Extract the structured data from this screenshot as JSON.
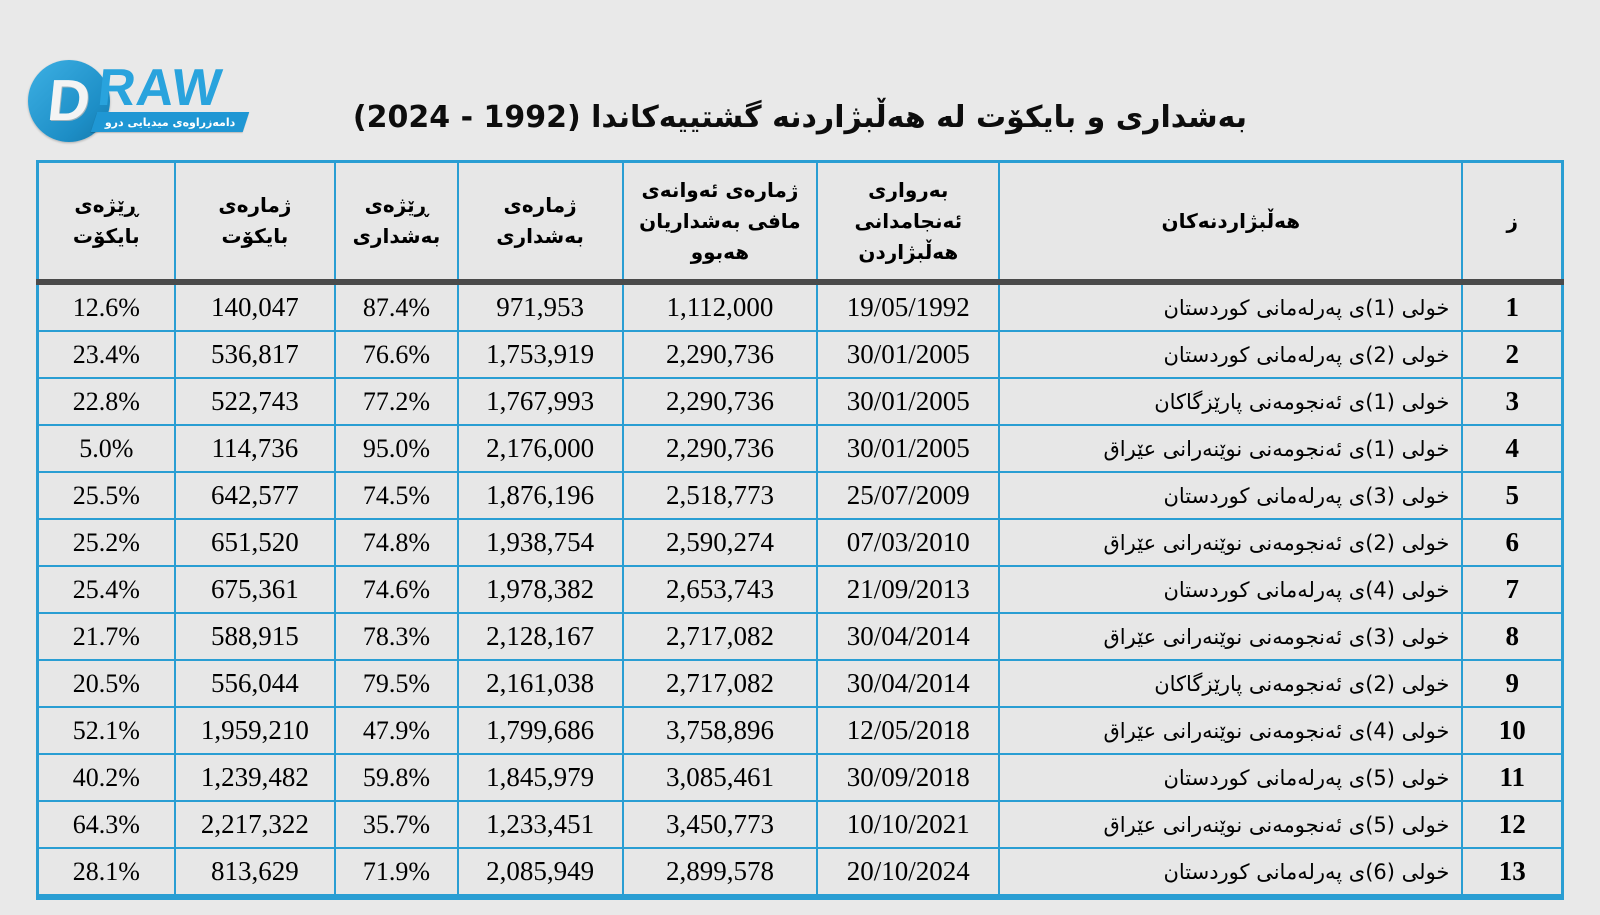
{
  "logo": {
    "brand_d": "D",
    "brand_raw": "RAW",
    "tagline": "دامەزراوەی میدیایی درو",
    "brand_color": "#29a3dd"
  },
  "title": "بەشداری و بایکۆت لە هەڵبژاردنە گشتییەکاندا (1992 - 2024)",
  "chart_data": {
    "type": "table",
    "title": "بەشداری و بایکۆت لە هەڵبژاردنە گشتییەکاندا (1992 - 2024)",
    "columns": [
      "ز",
      "هەڵبژاردنەکان",
      "بەرواری ئەنجامدانی هەڵبژاردن",
      "ژمارەی ئەوانەی مافی بەشداریان هەبوو",
      "ژمارەی بەشداری",
      "ڕێژەی بەشداری",
      "ژمارەی بایکۆت",
      "ڕێژەی بایکۆت"
    ],
    "rows": [
      [
        "1",
        "خولی (1)ی پەرلەمانی کوردستان",
        "19/05/1992",
        "1,112,000",
        "971,953",
        "87.4%",
        "140,047",
        "12.6%"
      ],
      [
        "2",
        "خولی (2)ی پەرلەمانی کوردستان",
        "30/01/2005",
        "2,290,736",
        "1,753,919",
        "76.6%",
        "536,817",
        "23.4%"
      ],
      [
        "3",
        "خولی (1)ی ئەنجومەنی پارێزگاکان",
        "30/01/2005",
        "2,290,736",
        "1,767,993",
        "77.2%",
        "522,743",
        "22.8%"
      ],
      [
        "4",
        "خولی (1)ی ئەنجومەنی نوێنەرانی عێراق",
        "30/01/2005",
        "2,290,736",
        "2,176,000",
        "95.0%",
        "114,736",
        "5.0%"
      ],
      [
        "5",
        "خولی (3)ی پەرلەمانی کوردستان",
        "25/07/2009",
        "2,518,773",
        "1,876,196",
        "74.5%",
        "642,577",
        "25.5%"
      ],
      [
        "6",
        "خولی (2)ی ئەنجومەنی نوێنەرانی عێراق",
        "07/03/2010",
        "2,590,274",
        "1,938,754",
        "74.8%",
        "651,520",
        "25.2%"
      ],
      [
        "7",
        "خولی (4)ی پەرلەمانی کوردستان",
        "21/09/2013",
        "2,653,743",
        "1,978,382",
        "74.6%",
        "675,361",
        "25.4%"
      ],
      [
        "8",
        "خولی (3)ی ئەنجومەنی نوێنەرانی عێراق",
        "30/04/2014",
        "2,717,082",
        "2,128,167",
        "78.3%",
        "588,915",
        "21.7%"
      ],
      [
        "9",
        "خولی (2)ی ئەنجومەنی پارێزگاکان",
        "30/04/2014",
        "2,717,082",
        "2,161,038",
        "79.5%",
        "556,044",
        "20.5%"
      ],
      [
        "10",
        "خولی (4)ی ئەنجومەنی نوێنەرانی عێراق",
        "12/05/2018",
        "3,758,896",
        "1,799,686",
        "47.9%",
        "1,959,210",
        "52.1%"
      ],
      [
        "11",
        "خولی (5)ی پەرلەمانی کوردستان",
        "30/09/2018",
        "3,085,461",
        "1,845,979",
        "59.8%",
        "1,239,482",
        "40.2%"
      ],
      [
        "12",
        "خولی (5)ی ئەنجومەنی نوێنەرانی عێراق",
        "10/10/2021",
        "3,450,773",
        "1,233,451",
        "35.7%",
        "2,217,322",
        "64.3%"
      ],
      [
        "13",
        "خولی (6)ی پەرلەمانی کوردستان",
        "20/10/2024",
        "2,899,578",
        "2,085,949",
        "71.9%",
        "813,629",
        "28.1%"
      ]
    ],
    "layout_hints": {
      "direction": "rtl",
      "header_position": "top",
      "grid": true
    }
  },
  "colors": {
    "background": "#e9e9e9",
    "cell_background": "#e7e7e7",
    "border_blue": "#2a9ed3",
    "header_divider": "#4a4a4a",
    "text": "#000000",
    "brand_blue": "#29a3dd"
  }
}
